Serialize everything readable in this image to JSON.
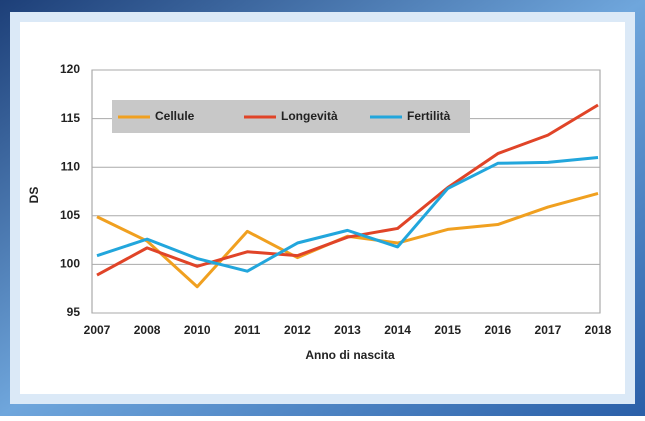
{
  "chart_data": {
    "type": "line",
    "y_label": "DS",
    "x_label": "Anno di nascita",
    "categories": [
      "2007",
      "2008",
      "2010",
      "2011",
      "2012",
      "2013",
      "2014",
      "2015",
      "2016",
      "2017",
      "2018"
    ],
    "series": [
      {
        "name": "Cellule",
        "color": "#f0a020",
        "values": [
          104.9,
          102.4,
          97.7,
          103.4,
          100.7,
          102.9,
          102.2,
          103.6,
          104.1,
          105.9,
          107.3
        ]
      },
      {
        "name": "Longevità",
        "color": "#e04428",
        "values": [
          98.9,
          101.7,
          99.8,
          101.3,
          100.9,
          102.8,
          103.7,
          107.9,
          111.4,
          113.3,
          116.4
        ]
      },
      {
        "name": "Fertilità",
        "color": "#22a6dc",
        "values": [
          100.9,
          102.6,
          100.6,
          99.3,
          102.2,
          103.5,
          101.8,
          107.8,
          110.4,
          110.5,
          111.0
        ]
      }
    ],
    "ylim": [
      95,
      120
    ],
    "yticks": [
      95,
      100,
      105,
      110,
      115,
      120
    ],
    "grid": true,
    "legend": "top-left"
  }
}
